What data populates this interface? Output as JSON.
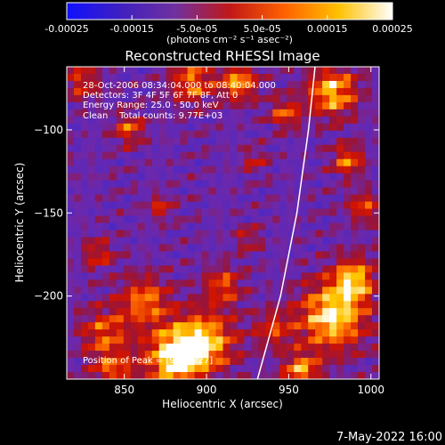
{
  "footer_date": "7-May-2022 16:00",
  "colorbar": {
    "ticks": [
      "-0.00025",
      "-0.00015",
      "-5.0e-05",
      "5.0e-05",
      "0.00015",
      "0.00025"
    ],
    "unit_label": "(photons cm⁻² s⁻¹ asec⁻²)",
    "range": [
      -0.00025,
      0.00025
    ],
    "colors": [
      "#1010ff",
      "#4020c0",
      "#7030a0",
      "#c01818",
      "#ff6000",
      "#ffc000",
      "#ffffff"
    ]
  },
  "chart_data": {
    "type": "heatmap",
    "title": "Reconstructed RHESSI Image",
    "xlabel": "Heliocentric X (arcsec)",
    "ylabel": "Heliocentric Y (arcsec)",
    "xlim": [
      815,
      1005
    ],
    "ylim": [
      -250,
      -62
    ],
    "xticks": [
      850,
      900,
      950,
      1000
    ],
    "yticks": [
      -100,
      -150,
      -200
    ],
    "grid": false,
    "annotations": [
      "28-Oct-2006 08:34:04.000 to 08:40:04.000",
      "Detectors: 3F 4F 5F 6F 7F 8F, Att 0",
      "Energy Range: 25.0 - 50.0 keV",
      "Clean    Total counts: 9.77E+03"
    ],
    "peak_label": "Position of Peak = [906,-227]",
    "limb_curve": [
      [
        931,
        -250
      ],
      [
        945,
        -200
      ],
      [
        955,
        -150
      ],
      [
        962,
        -100
      ],
      [
        966,
        -62
      ]
    ]
  }
}
